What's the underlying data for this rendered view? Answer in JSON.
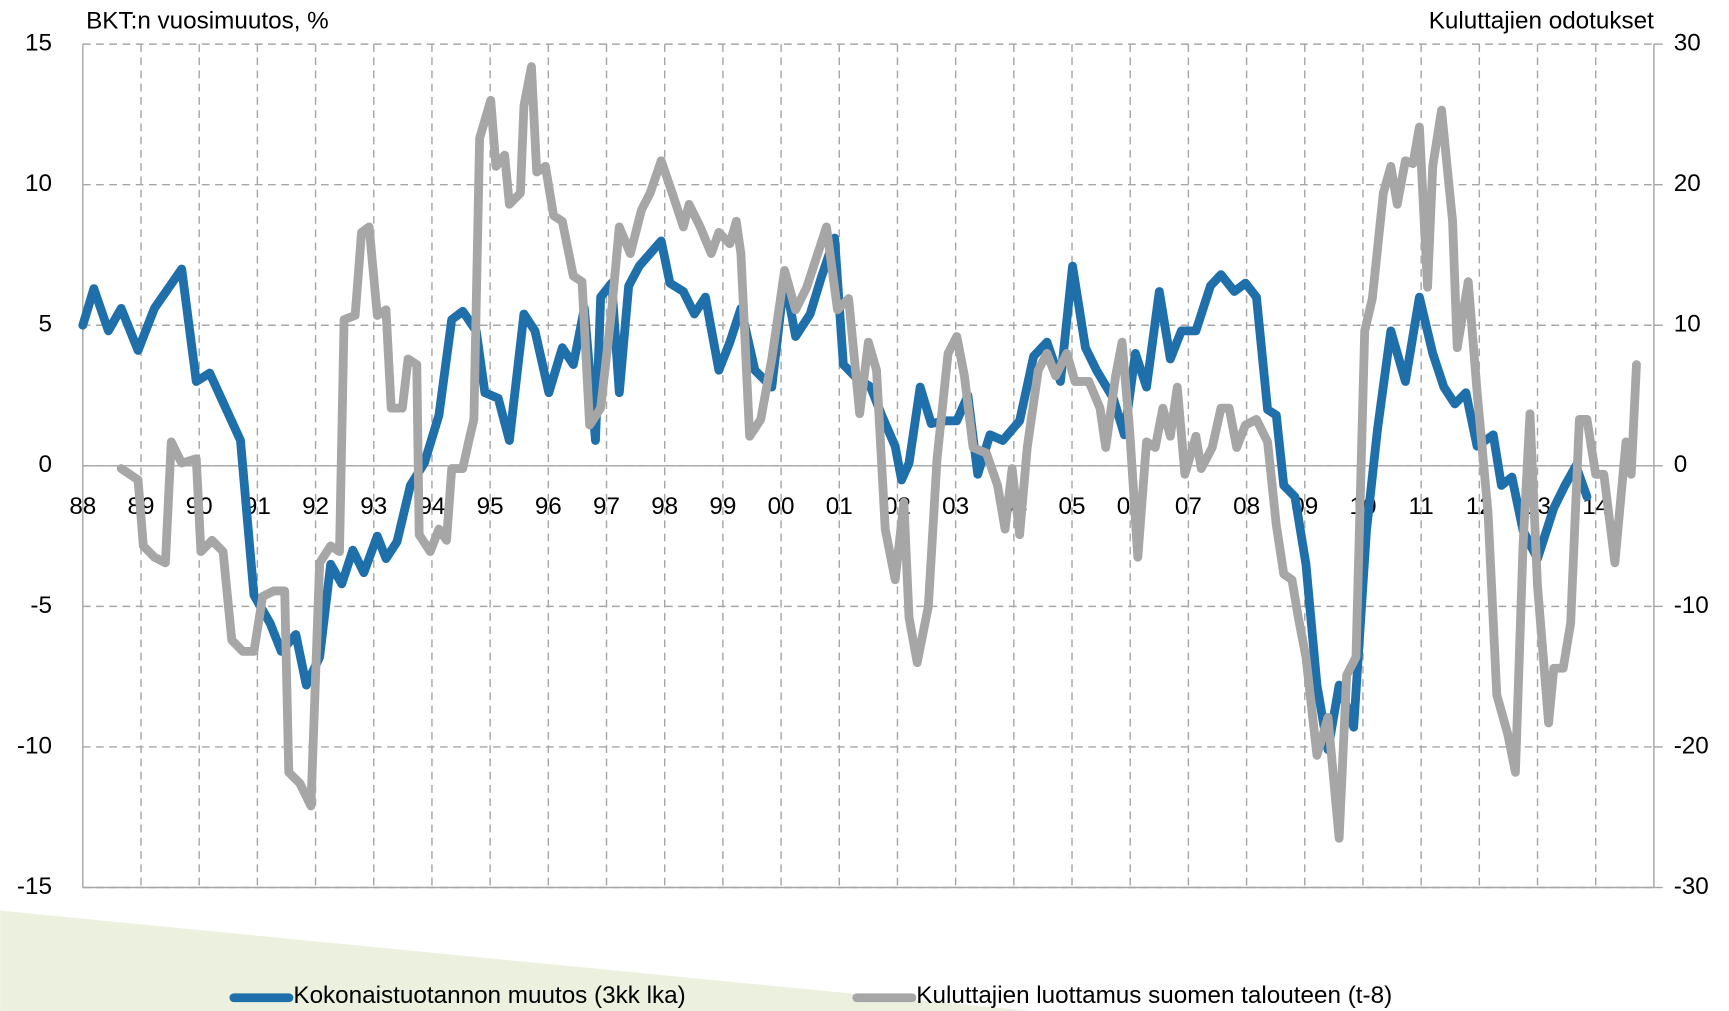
{
  "chart_data": {
    "type": "line",
    "y_label": "BKT:n vuosimuutos, %",
    "y2_label": "Kuluttajien odotukset",
    "xlim": [
      1988,
      2015
    ],
    "xticks": [
      {
        "value": 1988,
        "label": "88"
      },
      {
        "value": 1989,
        "label": "89"
      },
      {
        "value": 1990,
        "label": "90"
      },
      {
        "value": 1991,
        "label": "91"
      },
      {
        "value": 1992,
        "label": "92"
      },
      {
        "value": 1993,
        "label": "93"
      },
      {
        "value": 1994,
        "label": "94"
      },
      {
        "value": 1995,
        "label": "95"
      },
      {
        "value": 1996,
        "label": "96"
      },
      {
        "value": 1997,
        "label": "97"
      },
      {
        "value": 1998,
        "label": "98"
      },
      {
        "value": 1999,
        "label": "99"
      },
      {
        "value": 2000,
        "label": "00"
      },
      {
        "value": 2001,
        "label": "01"
      },
      {
        "value": 2002,
        "label": "02"
      },
      {
        "value": 2003,
        "label": "03"
      },
      {
        "value": 2004,
        "label": "04"
      },
      {
        "value": 2005,
        "label": "05"
      },
      {
        "value": 2006,
        "label": "06"
      },
      {
        "value": 2007,
        "label": "07"
      },
      {
        "value": 2008,
        "label": "08"
      },
      {
        "value": 2009,
        "label": "09"
      },
      {
        "value": 2010,
        "label": "10"
      },
      {
        "value": 2011,
        "label": "11"
      },
      {
        "value": 2012,
        "label": "12"
      },
      {
        "value": 2013,
        "label": "13"
      },
      {
        "value": 2014,
        "label": "14"
      }
    ],
    "ylim": [
      -15,
      15
    ],
    "yticks": [
      -15,
      -10,
      -5,
      0,
      5,
      10,
      15
    ],
    "y2lim": [
      -30,
      30
    ],
    "y2ticks": [
      -30,
      -20,
      -10,
      0,
      10,
      20,
      30
    ],
    "grid": true,
    "series": [
      {
        "name": "Kokonaistuotannon muutos (3kk lka)",
        "color": "#1f6fab",
        "x": [
          1988.0,
          1988.19,
          1988.44,
          1988.66,
          1988.95,
          1989.23,
          1989.7,
          1989.95,
          1990.18,
          1990.71,
          1990.94,
          1991.22,
          1991.41,
          1991.66,
          1991.84,
          1992.07,
          1992.26,
          1992.45,
          1992.64,
          1992.83,
          1993.06,
          1993.21,
          1993.4,
          1993.63,
          1993.87,
          1994.12,
          1994.34,
          1994.53,
          1994.76,
          1994.91,
          1995.14,
          1995.33,
          1995.58,
          1995.77,
          1996.01,
          1996.24,
          1996.43,
          1996.62,
          1996.81,
          1996.9,
          1997.09,
          1997.22,
          1997.38,
          1997.56,
          1997.94,
          1998.09,
          1998.32,
          1998.51,
          1998.7,
          1998.93,
          1999.12,
          1999.31,
          1999.55,
          1999.84,
          2000.06,
          2000.25,
          2000.5,
          2000.69,
          2000.92,
          2001.07,
          2001.26,
          2001.54,
          2001.73,
          2001.96,
          2002.07,
          2002.2,
          2002.39,
          2002.58,
          2002.83,
          2003.02,
          2003.21,
          2003.38,
          2003.59,
          2003.81,
          2004.1,
          2004.34,
          2004.57,
          2004.8,
          2005.01,
          2005.23,
          2005.42,
          2005.71,
          2005.9,
          2006.09,
          2006.28,
          2006.5,
          2006.69,
          2006.88,
          2007.13,
          2007.38,
          2007.56,
          2007.79,
          2007.98,
          2008.17,
          2008.36,
          2008.51,
          2008.64,
          2008.83,
          2009.02,
          2009.21,
          2009.4,
          2009.59,
          2009.84,
          2010.06,
          2010.25,
          2010.48,
          2010.73,
          2010.97,
          2011.2,
          2011.39,
          2011.58,
          2011.77,
          2011.96,
          2012.24,
          2012.38,
          2012.56,
          2012.75,
          2013.0,
          2013.28,
          2013.47,
          2013.66,
          2013.85
        ],
        "values": [
          5.0,
          6.3,
          4.8,
          5.6,
          4.1,
          5.6,
          7.0,
          3.0,
          3.3,
          0.9,
          -4.6,
          -5.6,
          -6.6,
          -6.0,
          -7.8,
          -6.8,
          -3.5,
          -4.2,
          -3.0,
          -3.8,
          -2.5,
          -3.3,
          -2.7,
          -0.7,
          0.1,
          1.8,
          5.2,
          5.5,
          4.8,
          2.6,
          2.4,
          0.9,
          5.4,
          4.8,
          2.6,
          4.2,
          3.6,
          5.6,
          0.9,
          6.0,
          6.5,
          2.6,
          6.4,
          7.1,
          8.0,
          6.5,
          6.2,
          5.4,
          6.0,
          3.4,
          4.4,
          5.6,
          3.4,
          2.8,
          6.7,
          4.6,
          5.4,
          6.7,
          8.1,
          3.6,
          3.2,
          2.8,
          1.8,
          0.7,
          -0.5,
          0.1,
          2.8,
          1.5,
          1.6,
          1.6,
          2.5,
          -0.3,
          1.1,
          0.9,
          1.6,
          3.9,
          4.4,
          3.0,
          7.1,
          4.2,
          3.4,
          2.4,
          1.1,
          4.0,
          2.8,
          6.2,
          3.8,
          4.8,
          4.8,
          6.4,
          6.8,
          6.2,
          6.5,
          6.0,
          2.0,
          1.8,
          -0.7,
          -1.1,
          -3.5,
          -7.8,
          -10.1,
          -7.8,
          -9.3,
          -2.3,
          1.3,
          4.8,
          3.0,
          6.0,
          4.0,
          2.8,
          2.2,
          2.6,
          0.7,
          1.1,
          -0.7,
          -0.4,
          -2.3,
          -3.3,
          -1.5,
          -0.7,
          0.0,
          -1.1
        ]
      },
      {
        "name": "Kuluttajien luottamus suomen talouteen (t-8)",
        "color": "#a6a6a6",
        "axis": "y2",
        "x": [
          1988.66,
          1988.95,
          1989.04,
          1989.23,
          1989.42,
          1989.52,
          1989.7,
          1989.95,
          1990.03,
          1990.22,
          1990.41,
          1990.56,
          1990.75,
          1990.94,
          1991.09,
          1991.28,
          1991.47,
          1991.54,
          1991.73,
          1991.92,
          1992.07,
          1992.26,
          1992.41,
          1992.49,
          1992.68,
          1992.79,
          1992.92,
          1993.06,
          1993.21,
          1993.3,
          1993.49,
          1993.59,
          1993.74,
          1993.78,
          1993.97,
          1994.12,
          1994.25,
          1994.34,
          1994.53,
          1994.63,
          1994.72,
          1994.82,
          1995.01,
          1995.1,
          1995.25,
          1995.33,
          1995.52,
          1995.58,
          1995.71,
          1995.8,
          1995.95,
          1996.09,
          1996.24,
          1996.43,
          1996.58,
          1996.71,
          1996.9,
          1997.09,
          1997.22,
          1997.41,
          1997.6,
          1997.75,
          1997.94,
          1998.13,
          1998.32,
          1998.42,
          1998.61,
          1998.8,
          1998.93,
          1999.12,
          1999.23,
          1999.31,
          1999.46,
          1999.65,
          1999.84,
          2000.06,
          2000.25,
          2000.44,
          2000.63,
          2000.78,
          2000.97,
          2001.16,
          2001.35,
          2001.5,
          2001.64,
          2001.79,
          2001.96,
          2002.11,
          2002.2,
          2002.34,
          2002.53,
          2002.68,
          2002.87,
          2003.02,
          2003.15,
          2003.3,
          2003.53,
          2003.72,
          2003.85,
          2003.97,
          2004.1,
          2004.23,
          2004.42,
          2004.57,
          2004.72,
          2004.91,
          2005.05,
          2005.29,
          2005.48,
          2005.58,
          2005.75,
          2005.86,
          2005.99,
          2006.13,
          2006.28,
          2006.43,
          2006.56,
          2006.69,
          2006.81,
          2006.94,
          2007.13,
          2007.22,
          2007.41,
          2007.56,
          2007.7,
          2007.83,
          2007.98,
          2008.17,
          2008.36,
          2008.51,
          2008.64,
          2008.78,
          2008.89,
          2009.02,
          2009.21,
          2009.4,
          2009.59,
          2009.72,
          2009.88,
          2010.03,
          2010.16,
          2010.35,
          2010.48,
          2010.59,
          2010.73,
          2010.86,
          2010.97,
          2011.11,
          2011.2,
          2011.35,
          2011.54,
          2011.62,
          2011.81,
          2011.96,
          2012.15,
          2012.3,
          2012.49,
          2012.62,
          2012.75,
          2012.87,
          2013.0,
          2013.19,
          2013.28,
          2013.44,
          2013.57,
          2013.72,
          2013.85,
          2014.0,
          2014.14,
          2014.33,
          2014.52,
          2014.61,
          2014.7
        ],
        "values": [
          -0.2,
          -1.0,
          -5.7,
          -6.5,
          -6.9,
          1.7,
          0.2,
          0.5,
          -6.1,
          -5.3,
          -6.1,
          -12.4,
          -13.2,
          -13.2,
          -9.3,
          -8.9,
          -8.9,
          -21.8,
          -22.6,
          -24.2,
          -6.9,
          -5.7,
          -6.1,
          10.4,
          10.7,
          16.6,
          17.0,
          10.7,
          11.1,
          4.1,
          4.1,
          7.6,
          7.2,
          -4.9,
          -6.1,
          -4.5,
          -5.3,
          -0.2,
          -0.2,
          1.7,
          3.3,
          23.3,
          26.0,
          21.3,
          22.1,
          18.6,
          19.4,
          25.6,
          28.4,
          20.9,
          21.3,
          17.8,
          17.4,
          13.5,
          13.1,
          2.9,
          4.1,
          11.1,
          17.0,
          15.1,
          18.2,
          19.4,
          21.7,
          19.4,
          17.0,
          18.6,
          17.0,
          15.1,
          16.6,
          15.8,
          17.4,
          15.1,
          2.1,
          3.3,
          7.6,
          13.9,
          11.1,
          12.7,
          15.1,
          17.0,
          11.1,
          11.9,
          3.7,
          8.8,
          6.8,
          -4.5,
          -8.1,
          -2.6,
          -10.8,
          -14.0,
          -10.0,
          0.5,
          8.0,
          9.2,
          6.4,
          1.3,
          0.9,
          -1.4,
          -4.5,
          -0.2,
          -4.9,
          1.3,
          6.8,
          8.0,
          6.4,
          8.0,
          6.0,
          6.0,
          4.1,
          1.3,
          6.4,
          8.8,
          2.5,
          -6.5,
          1.7,
          1.3,
          4.1,
          2.1,
          5.6,
          -0.6,
          2.1,
          -0.2,
          1.3,
          4.1,
          4.1,
          1.3,
          2.9,
          3.3,
          1.7,
          -4.2,
          -7.7,
          -8.1,
          -10.8,
          -13.6,
          -20.6,
          -17.9,
          -26.5,
          -14.9,
          -13.6,
          9.6,
          11.9,
          19.4,
          21.3,
          18.6,
          21.7,
          21.5,
          24.1,
          12.7,
          21.3,
          25.3,
          17.4,
          8.4,
          13.1,
          5.3,
          -3.4,
          -16.3,
          -19.1,
          -21.8,
          -5.7,
          3.7,
          -8.5,
          -18.3,
          -14.4,
          -14.4,
          -11.2,
          3.3,
          3.3,
          -0.6,
          -0.6,
          -6.9,
          1.7,
          -0.6,
          7.2
        ]
      }
    ]
  }
}
